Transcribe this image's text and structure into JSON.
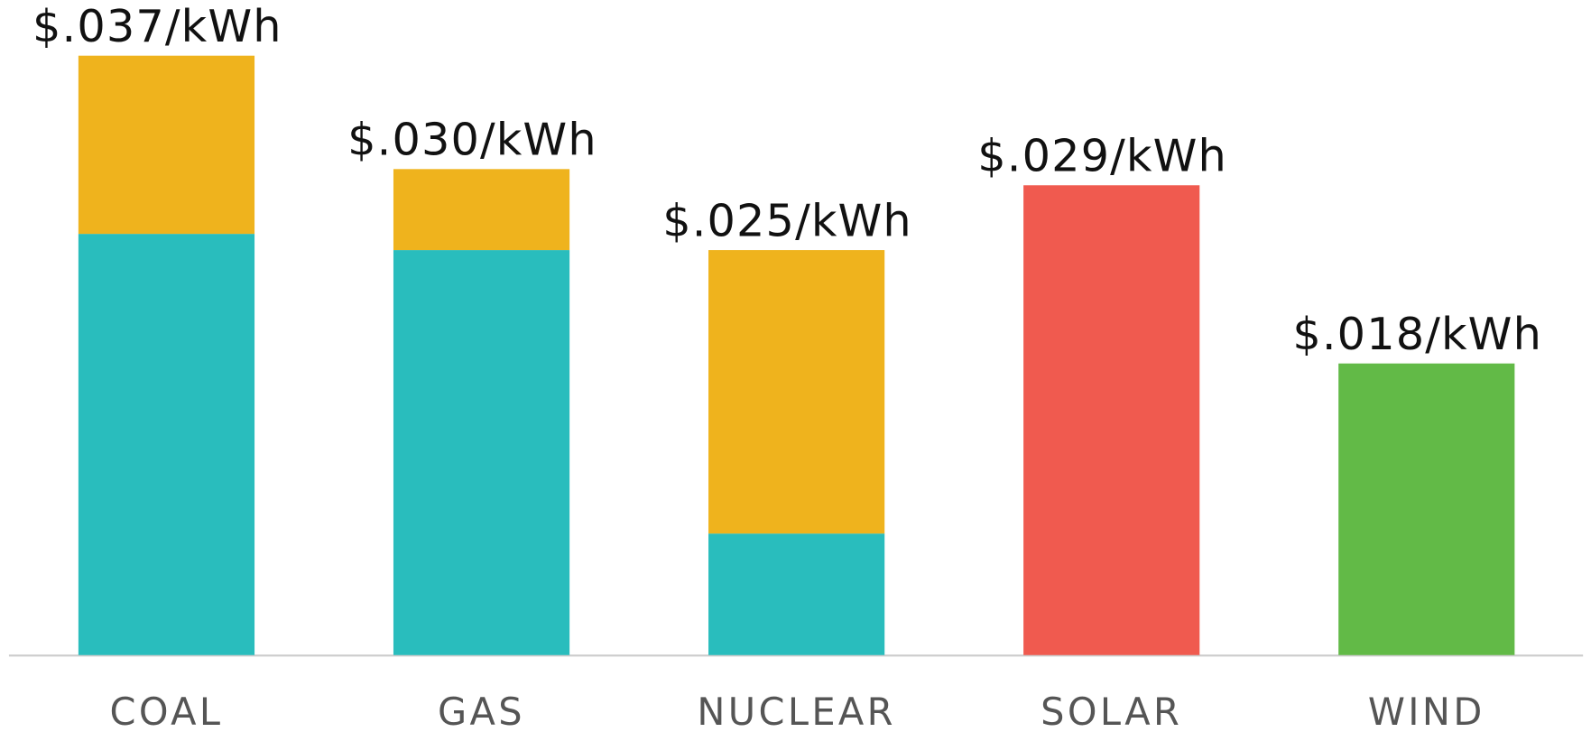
{
  "chart_data": {
    "type": "bar",
    "stacked": true,
    "categories": [
      "COAL",
      "GAS",
      "NUCLEAR",
      "SOLAR",
      "WIND"
    ],
    "series": [
      {
        "color": "#29bdbd",
        "values": [
          0.026,
          0.025,
          0.0075,
          null,
          null
        ]
      },
      {
        "color": "#efb31d",
        "values": [
          0.011,
          0.005,
          0.0175,
          null,
          null
        ]
      },
      {
        "color": "#f05a4f",
        "values": [
          null,
          null,
          null,
          0.029,
          null
        ]
      },
      {
        "color": "#62ba47",
        "values": [
          null,
          null,
          null,
          null,
          0.018
        ]
      }
    ],
    "totals": [
      0.037,
      0.03,
      0.025,
      0.029,
      0.018
    ],
    "total_labels": [
      "$.037/kWh",
      "$.030/kWh",
      "$.025/kWh",
      "$.029/kWh",
      "$.018/kWh"
    ],
    "ylim": [
      0,
      0.04
    ]
  }
}
